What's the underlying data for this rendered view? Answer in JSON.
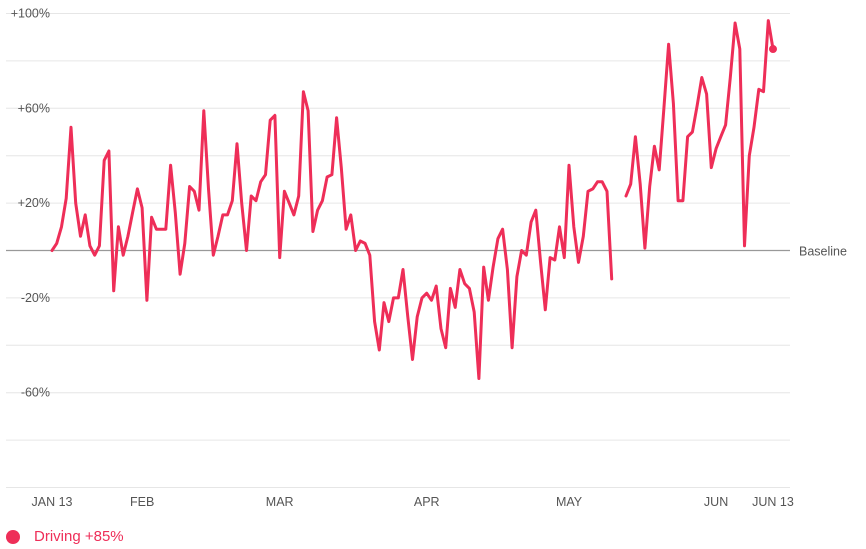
{
  "accent_color": "#ee2e58",
  "chart_data": {
    "type": "line",
    "y_ticks": [
      "+100%",
      "+60%",
      "+20%",
      "-20%",
      "-60%"
    ],
    "y_tick_values": [
      100,
      60,
      20,
      -20,
      -60
    ],
    "ylim": [
      -100,
      100
    ],
    "x_ticks": [
      "JAN 13",
      "FEB",
      "MAR",
      "APR",
      "MAY",
      "JUN",
      "JUN 13"
    ],
    "x_tick_days": [
      0,
      19,
      48,
      79,
      109,
      140,
      152
    ],
    "xlim_days": [
      0,
      152
    ],
    "baseline_label": "Baseline",
    "grid": true,
    "legend_position": "bottom-left",
    "series": [
      {
        "name": "Driving",
        "legend_label": "Driving +85%",
        "last_value": 85,
        "segments": [
          [
            [
              0,
              0
            ],
            [
              1,
              3
            ],
            [
              2,
              10
            ],
            [
              3,
              22
            ],
            [
              4,
              52
            ],
            [
              5,
              20
            ],
            [
              6,
              6
            ],
            [
              7,
              15
            ],
            [
              8,
              2
            ],
            [
              9,
              -2
            ],
            [
              10,
              2
            ],
            [
              11,
              38
            ],
            [
              12,
              42
            ],
            [
              13,
              -17
            ],
            [
              14,
              10
            ],
            [
              15,
              -2
            ],
            [
              16,
              6
            ],
            [
              17,
              16
            ],
            [
              18,
              26
            ],
            [
              19,
              18
            ],
            [
              20,
              -21
            ],
            [
              21,
              14
            ],
            [
              22,
              9
            ],
            [
              23,
              9
            ],
            [
              24,
              9
            ],
            [
              25,
              36
            ],
            [
              26,
              16
            ],
            [
              27,
              -10
            ],
            [
              28,
              3
            ],
            [
              29,
              27
            ],
            [
              30,
              25
            ],
            [
              31,
              17
            ],
            [
              32,
              59
            ],
            [
              33,
              26
            ],
            [
              34,
              -2
            ],
            [
              35,
              6
            ],
            [
              36,
              15
            ],
            [
              37,
              15
            ],
            [
              38,
              21
            ],
            [
              39,
              45
            ],
            [
              40,
              20
            ],
            [
              41,
              0
            ],
            [
              42,
              23
            ],
            [
              43,
              21
            ],
            [
              44,
              29
            ],
            [
              45,
              32
            ],
            [
              46,
              55
            ],
            [
              47,
              57
            ],
            [
              48,
              -3
            ],
            [
              49,
              25
            ],
            [
              50,
              20
            ],
            [
              51,
              15
            ],
            [
              52,
              23
            ],
            [
              53,
              67
            ],
            [
              54,
              59
            ],
            [
              55,
              8
            ],
            [
              56,
              17
            ],
            [
              57,
              21
            ],
            [
              58,
              31
            ],
            [
              59,
              32
            ],
            [
              60,
              56
            ],
            [
              61,
              35
            ],
            [
              62,
              9
            ],
            [
              63,
              15
            ],
            [
              64,
              0
            ],
            [
              65,
              4
            ],
            [
              66,
              3
            ],
            [
              67,
              -2
            ],
            [
              68,
              -30
            ],
            [
              69,
              -42
            ],
            [
              70,
              -22
            ],
            [
              71,
              -30
            ],
            [
              72,
              -20
            ],
            [
              73,
              -20
            ],
            [
              74,
              -8
            ],
            [
              75,
              -28
            ],
            [
              76,
              -46
            ],
            [
              77,
              -28
            ],
            [
              78,
              -20
            ],
            [
              79,
              -18
            ],
            [
              80,
              -21
            ],
            [
              81,
              -15
            ],
            [
              82,
              -33
            ],
            [
              83,
              -41
            ],
            [
              84,
              -16
            ],
            [
              85,
              -24
            ],
            [
              86,
              -8
            ],
            [
              87,
              -14
            ],
            [
              88,
              -16
            ],
            [
              89,
              -26
            ],
            [
              90,
              -54
            ],
            [
              91,
              -7
            ],
            [
              92,
              -21
            ],
            [
              93,
              -7
            ],
            [
              94,
              5
            ],
            [
              95,
              9
            ],
            [
              96,
              -8
            ],
            [
              97,
              -41
            ],
            [
              98,
              -11
            ],
            [
              99,
              0
            ],
            [
              100,
              -2
            ],
            [
              101,
              12
            ],
            [
              102,
              17
            ],
            [
              103,
              -5
            ],
            [
              104,
              -25
            ],
            [
              105,
              -3
            ],
            [
              106,
              -4
            ],
            [
              107,
              10
            ],
            [
              108,
              -3
            ],
            [
              109,
              36
            ],
            [
              110,
              10
            ],
            [
              111,
              -5
            ],
            [
              112,
              6
            ],
            [
              113,
              25
            ],
            [
              114,
              26
            ],
            [
              115,
              29
            ],
            [
              116,
              29
            ],
            [
              117,
              25
            ],
            [
              118,
              -12
            ]
          ],
          [
            [
              121,
              23
            ],
            [
              122,
              28
            ],
            [
              123,
              48
            ],
            [
              124,
              28
            ],
            [
              125,
              1
            ],
            [
              126,
              27
            ],
            [
              127,
              44
            ],
            [
              128,
              34
            ],
            [
              129,
              60
            ],
            [
              130,
              87
            ],
            [
              131,
              62
            ],
            [
              132,
              21
            ],
            [
              133,
              21
            ],
            [
              134,
              48
            ],
            [
              135,
              50
            ],
            [
              136,
              61
            ],
            [
              137,
              73
            ],
            [
              138,
              66
            ],
            [
              139,
              35
            ],
            [
              140,
              43
            ],
            [
              141,
              48
            ],
            [
              142,
              53
            ],
            [
              143,
              73
            ],
            [
              144,
              96
            ],
            [
              145,
              85
            ],
            [
              146,
              2
            ],
            [
              147,
              40
            ],
            [
              148,
              52
            ],
            [
              149,
              68
            ],
            [
              150,
              67
            ],
            [
              151,
              97
            ],
            [
              152,
              85
            ]
          ]
        ]
      }
    ]
  }
}
